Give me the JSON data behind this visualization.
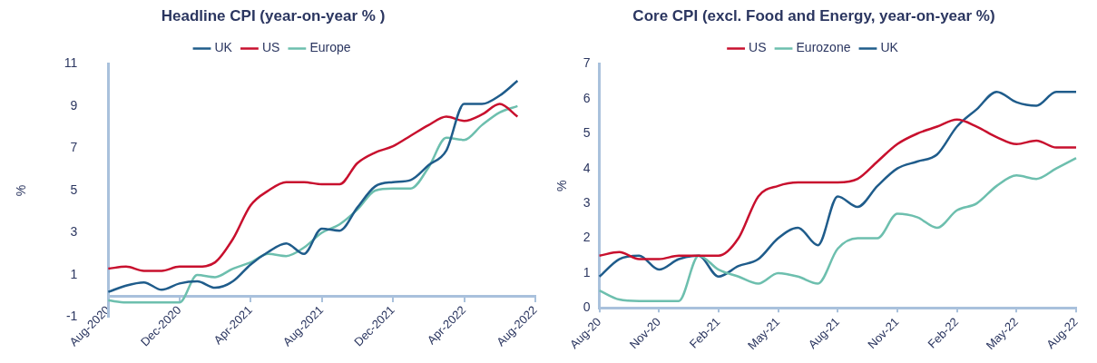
{
  "chart_data": [
    {
      "type": "line",
      "title": "Headline CPI (year-on-year % )",
      "ylabel": "%",
      "categories": [
        "Aug-2020",
        null,
        null,
        null,
        "Dec-2020",
        null,
        null,
        null,
        "Apr-2021",
        null,
        null,
        null,
        "Aug-2021",
        null,
        null,
        null,
        "Dec-2021",
        null,
        null,
        null,
        "Apr-2022",
        null,
        null,
        null,
        "Aug-2022"
      ],
      "series": [
        {
          "name": "UK",
          "color": "#1f5c8b",
          "values": [
            0.2,
            0.5,
            0.65,
            0.3,
            0.6,
            0.7,
            0.4,
            0.7,
            1.5,
            2.1,
            2.5,
            2.0,
            3.2,
            3.1,
            4.2,
            5.2,
            5.4,
            5.5,
            6.2,
            6.9,
            9.1,
            9.1,
            9.5,
            10.2,
            null
          ]
        },
        {
          "name": "US",
          "color": "#c8102e",
          "values": [
            1.3,
            1.4,
            1.2,
            1.2,
            1.4,
            1.4,
            1.6,
            2.7,
            4.3,
            5.0,
            5.4,
            5.4,
            5.3,
            5.3,
            6.3,
            6.8,
            7.1,
            7.6,
            8.1,
            8.5,
            8.3,
            8.6,
            9.1,
            8.5,
            null
          ]
        },
        {
          "name": "Europe",
          "color": "#6dbfae",
          "values": [
            -0.2,
            -0.3,
            -0.3,
            -0.3,
            -0.3,
            1.0,
            0.9,
            1.3,
            1.6,
            2.0,
            1.9,
            2.3,
            3.0,
            3.4,
            4.1,
            5.0,
            5.1,
            5.1,
            6.1,
            7.5,
            7.4,
            8.1,
            8.7,
            9.0,
            null
          ]
        }
      ],
      "ylim": [
        -1,
        11
      ],
      "yticks": [
        -1,
        1,
        3,
        5,
        7,
        9,
        11
      ],
      "legend": "top",
      "grid": false,
      "marker": "none",
      "line_style": "solid"
    },
    {
      "type": "line",
      "title": "Core CPI (excl. Food and Energy, year-on-year %)",
      "ylabel": "%",
      "categories": [
        "Aug-20",
        null,
        null,
        "Nov-20",
        null,
        null,
        "Feb-21",
        null,
        null,
        "May-21",
        null,
        null,
        "Aug-21",
        null,
        null,
        "Nov-21",
        null,
        null,
        "Feb-22",
        null,
        null,
        "May-22",
        null,
        null,
        "Aug-22"
      ],
      "series": [
        {
          "name": "US",
          "color": "#c8102e",
          "values": [
            1.5,
            1.6,
            1.4,
            1.4,
            1.5,
            1.5,
            1.5,
            2.0,
            3.2,
            3.5,
            3.6,
            3.6,
            3.6,
            3.7,
            4.2,
            4.7,
            5.0,
            5.2,
            5.4,
            5.2,
            4.9,
            4.7,
            4.8,
            4.6,
            4.6
          ]
        },
        {
          "name": "Eurozone",
          "color": "#6dbfae",
          "values": [
            0.5,
            0.24,
            0.2,
            0.2,
            0.2,
            1.5,
            1.1,
            0.9,
            0.7,
            1.0,
            0.9,
            0.7,
            1.7,
            2.0,
            2.0,
            2.7,
            2.6,
            2.3,
            2.8,
            3.0,
            3.5,
            3.8,
            3.7,
            4.0,
            4.3
          ]
        },
        {
          "name": "UK",
          "color": "#1f5c8b",
          "values": [
            0.9,
            1.4,
            1.5,
            1.1,
            1.4,
            1.5,
            0.9,
            1.2,
            1.4,
            2.0,
            2.3,
            1.8,
            3.2,
            2.9,
            3.5,
            4.0,
            4.2,
            4.4,
            5.2,
            5.7,
            6.2,
            5.9,
            5.8,
            6.2,
            6.2
          ]
        }
      ],
      "ylim": [
        0,
        7
      ],
      "yticks": [
        0,
        1,
        2,
        3,
        4,
        5,
        6,
        7
      ],
      "legend": "top",
      "grid": false,
      "marker": "none",
      "line_style": "solid"
    }
  ]
}
